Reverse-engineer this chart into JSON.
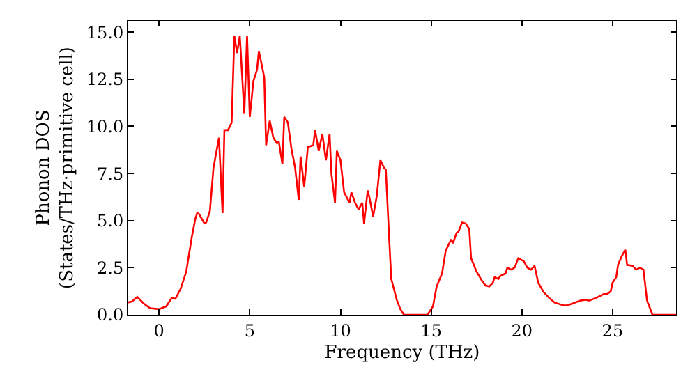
{
  "chart_data": {
    "type": "line",
    "xlabel": "Frequency (THz)",
    "ylabel": "Phonon DOS\n(States/THz·primitive cell)",
    "x": [
      -1.7,
      -1.5,
      -1.2,
      -0.85,
      -0.5,
      0,
      0.4,
      0.7,
      0.9,
      1.2,
      1.5,
      1.8,
      2.0,
      2.1,
      2.2,
      2.5,
      2.6,
      2.8,
      3.0,
      3.3,
      3.5,
      3.6,
      3.8,
      4.0,
      4.15,
      4.3,
      4.45,
      4.7,
      4.85,
      5.0,
      5.2,
      5.4,
      5.5,
      5.8,
      5.9,
      6.1,
      6.3,
      6.5,
      6.6,
      6.8,
      6.9,
      7.1,
      7.3,
      7.5,
      7.7,
      7.8,
      8.0,
      8.2,
      8.5,
      8.6,
      8.8,
      9.0,
      9.2,
      9.4,
      9.5,
      9.7,
      9.8,
      10.0,
      10.2,
      10.5,
      10.6,
      10.8,
      11.0,
      11.2,
      11.3,
      11.5,
      11.6,
      11.8,
      12.0,
      12.2,
      12.4,
      12.5,
      12.7,
      12.8,
      13.1,
      13.3,
      13.5,
      14.8,
      15.1,
      15.3,
      15.6,
      15.8,
      16.1,
      16.2,
      16.4,
      16.5,
      16.7,
      16.9,
      17.1,
      17.2,
      17.5,
      17.8,
      18.0,
      18.2,
      18.4,
      18.5,
      18.7,
      18.8,
      19.1,
      19.2,
      19.4,
      19.6,
      19.8,
      20.1,
      20.3,
      20.5,
      20.7,
      20.9,
      21.2,
      21.5,
      21.8,
      22.3,
      22.5,
      22.8,
      23.2,
      23.5,
      23.7,
      24.1,
      24.5,
      24.7,
      24.9,
      25.0,
      25.2,
      25.3,
      25.5,
      25.7,
      25.8,
      26.1,
      26.3,
      26.5,
      26.7,
      26.9,
      27.2,
      28.5
    ],
    "series": [
      {
        "color": "#ff0000",
        "values": [
          0.66,
          0.7,
          0.95,
          0.6,
          0.35,
          0.3,
          0.45,
          0.9,
          0.85,
          1.4,
          2.3,
          4.1,
          5.1,
          5.4,
          5.35,
          4.85,
          4.9,
          5.5,
          7.8,
          9.4,
          5.4,
          9.8,
          9.8,
          10.2,
          14.8,
          13.9,
          14.8,
          10.7,
          14.8,
          10.5,
          12.4,
          13.0,
          14.0,
          12.6,
          9.0,
          10.3,
          9.4,
          9.1,
          9.2,
          8.0,
          10.5,
          10.2,
          8.8,
          7.8,
          6.1,
          8.4,
          6.8,
          8.9,
          9.0,
          9.8,
          8.7,
          9.6,
          8.2,
          9.6,
          7.5,
          5.95,
          8.7,
          8.2,
          6.5,
          5.95,
          6.5,
          5.95,
          5.6,
          5.95,
          4.85,
          6.6,
          6.2,
          5.2,
          6.3,
          8.2,
          7.8,
          7.7,
          3.75,
          1.9,
          0.8,
          0.3,
          0,
          0,
          0.45,
          1.5,
          2.2,
          3.4,
          4.0,
          3.8,
          4.35,
          4.4,
          4.9,
          4.85,
          4.55,
          3.0,
          2.3,
          1.8,
          1.55,
          1.5,
          1.7,
          2.0,
          1.9,
          2.05,
          2.2,
          2.5,
          2.4,
          2.5,
          3.0,
          2.85,
          2.5,
          2.4,
          2.6,
          1.7,
          1.2,
          0.9,
          0.65,
          0.5,
          0.5,
          0.6,
          0.75,
          0.8,
          0.75,
          0.9,
          1.1,
          1.1,
          1.25,
          1.7,
          2.0,
          2.65,
          3.1,
          3.45,
          2.65,
          2.6,
          2.4,
          2.5,
          2.4,
          0.75,
          0,
          0
        ]
      }
    ],
    "xlim": [
      -1.7,
      28.5
    ],
    "xticks": [
      0,
      5,
      10,
      15,
      20,
      25
    ],
    "ylim": [
      0,
      15.6
    ],
    "yticks": [
      {
        "value": 0,
        "label": "0.0"
      },
      {
        "value": 2.5,
        "label": "2.5"
      },
      {
        "value": 5,
        "label": "5.0"
      },
      {
        "value": 7.5,
        "label": "7.5"
      },
      {
        "value": 10,
        "label": "10.0"
      },
      {
        "value": 12.5,
        "label": "12.5"
      },
      {
        "value": 15,
        "label": "15.0"
      }
    ],
    "marker": "none",
    "line_style": "solid"
  }
}
